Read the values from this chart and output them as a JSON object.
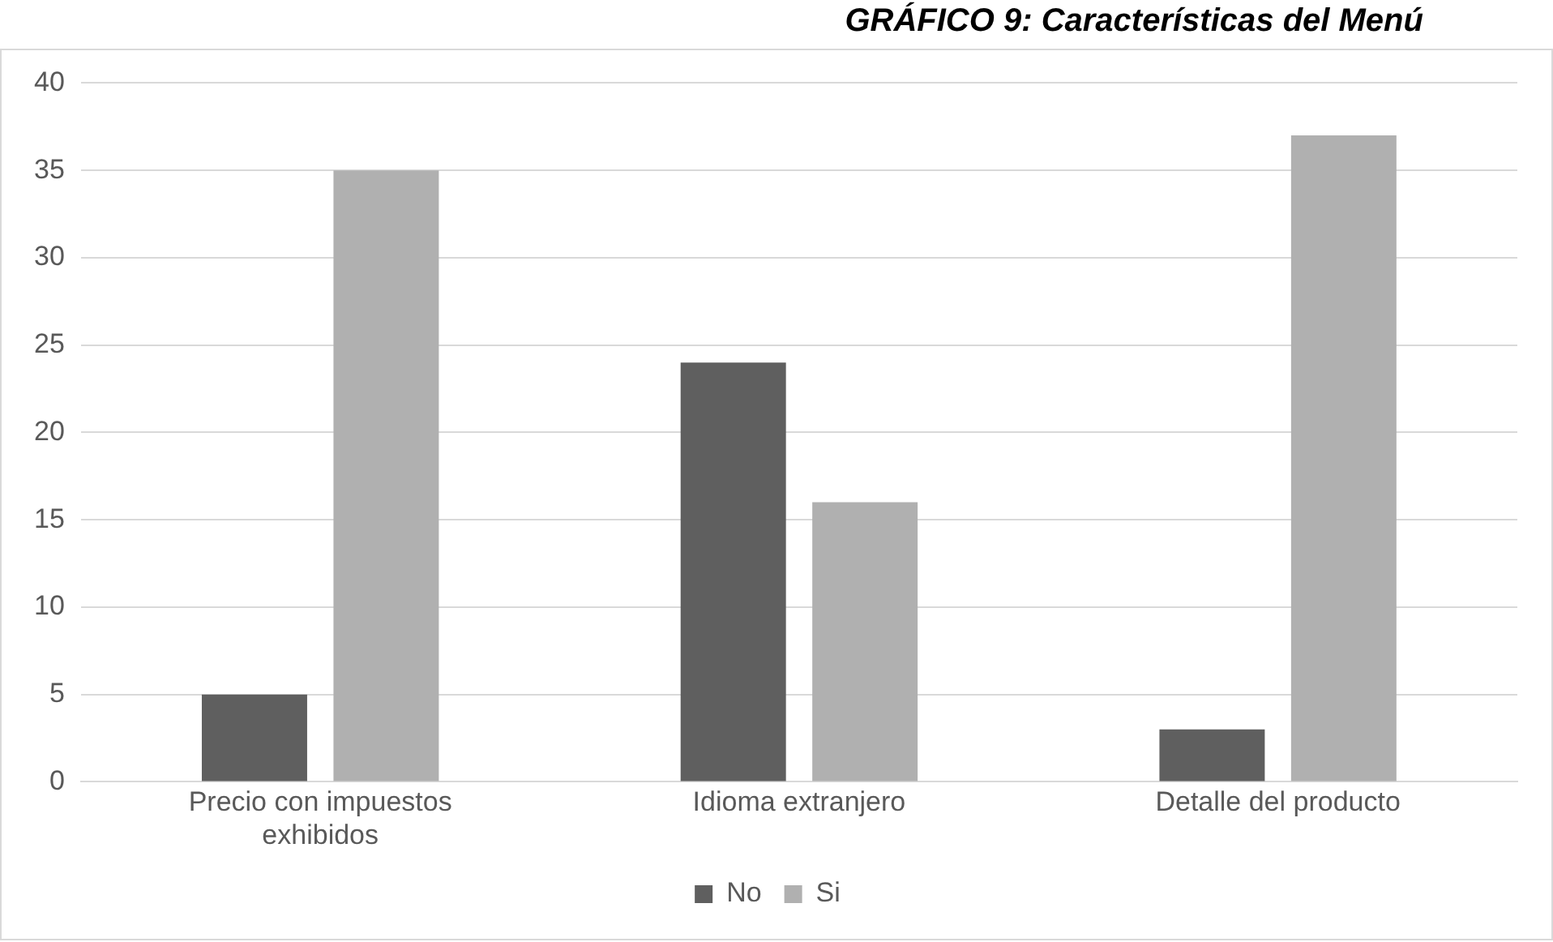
{
  "chart_data": {
    "type": "bar",
    "title": "GRÁFICO 9:  Características del Menú",
    "categories": [
      "Precio con impuestos exhibidos",
      "Idioma extranjero",
      "Detalle del producto"
    ],
    "series": [
      {
        "name": "No",
        "color": "#5f5f5f",
        "values": [
          5,
          24,
          3
        ]
      },
      {
        "name": "Si",
        "color": "#b0b0b0",
        "values": [
          35,
          16,
          37
        ]
      }
    ],
    "ylim": [
      0,
      40
    ],
    "yticks": [
      0,
      5,
      10,
      15,
      20,
      25,
      30,
      35,
      40
    ],
    "grid": "y",
    "legend": "bottom"
  }
}
